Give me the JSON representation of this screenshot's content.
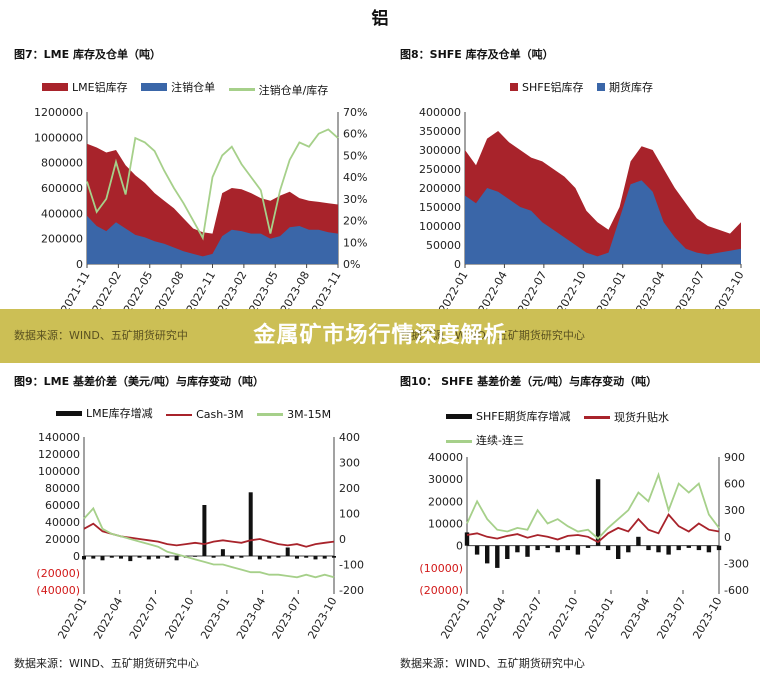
{
  "heading": "铝",
  "source_text": "数据来源：WIND、五矿期货研究中心",
  "banner": {
    "title": "金属矿市场行情深度解析",
    "source_left": "数据来源：WIND、五矿期货研究中",
    "source_right": "数据来源：WIND、五矿期货研究中心"
  },
  "colors": {
    "red": "#a8232b",
    "blue": "#3a66a8",
    "lightgreen": "#a6d08a",
    "black": "#111111",
    "banner": "#c8ba46"
  },
  "chart_data": [
    {
      "id": "fig7",
      "type": "area",
      "title": "图7：LME 库存及仓单（吨）",
      "x_ticks": [
        "2021-11",
        "2022-02",
        "2022-05",
        "2022-08",
        "2022-11",
        "2023-02",
        "2023-05",
        "2023-08",
        "2023-11"
      ],
      "ylim": [
        0,
        1200000
      ],
      "y_ticks": [
        "0",
        "200000",
        "400000",
        "600000",
        "800000",
        "1000000",
        "1200000"
      ],
      "y2lim": [
        0,
        70
      ],
      "y2_ticks": [
        "0%",
        "10%",
        "20%",
        "30%",
        "40%",
        "50%",
        "60%",
        "70%"
      ],
      "series": [
        {
          "name": "LME铝库存",
          "kind": "area",
          "axis": "left",
          "color": "#a8232b",
          "values": [
            950000,
            920000,
            880000,
            900000,
            780000,
            700000,
            640000,
            560000,
            500000,
            440000,
            360000,
            280000,
            250000,
            240000,
            560000,
            600000,
            590000,
            560000,
            520000,
            500000,
            540000,
            570000,
            520000,
            500000,
            490000,
            480000,
            470000
          ]
        },
        {
          "name": "注销仓单",
          "kind": "area",
          "axis": "left",
          "color": "#3a66a8",
          "values": [
            380000,
            300000,
            260000,
            330000,
            280000,
            230000,
            210000,
            180000,
            160000,
            130000,
            100000,
            80000,
            60000,
            80000,
            220000,
            270000,
            260000,
            240000,
            240000,
            200000,
            220000,
            290000,
            300000,
            270000,
            270000,
            250000,
            240000
          ]
        },
        {
          "name": "注销仓单/库存",
          "kind": "line",
          "axis": "right",
          "color": "#a6d08a",
          "values": [
            38,
            24,
            30,
            47,
            32,
            58,
            56,
            52,
            43,
            35,
            28,
            20,
            12,
            40,
            50,
            54,
            46,
            40,
            34,
            14,
            34,
            48,
            56,
            54,
            60,
            62,
            58
          ]
        }
      ]
    },
    {
      "id": "fig8",
      "type": "area",
      "title": "图8：SHFE 库存及仓单（吨）",
      "x_ticks": [
        "2022-01",
        "2022-04",
        "2022-07",
        "2022-10",
        "2023-01",
        "2023-04",
        "2023-07",
        "2023-10"
      ],
      "ylim": [
        0,
        400000
      ],
      "y_ticks": [
        "0",
        "50000",
        "100000",
        "150000",
        "200000",
        "250000",
        "300000",
        "350000",
        "400000"
      ],
      "series": [
        {
          "name": "SHFE铝库存",
          "kind": "area",
          "color": "#a8232b",
          "values": [
            300000,
            260000,
            330000,
            350000,
            320000,
            300000,
            280000,
            270000,
            250000,
            230000,
            200000,
            140000,
            110000,
            90000,
            150000,
            270000,
            310000,
            300000,
            250000,
            200000,
            160000,
            120000,
            100000,
            90000,
            80000,
            110000
          ]
        },
        {
          "name": "期货库存",
          "kind": "area",
          "color": "#3a66a8",
          "values": [
            180000,
            160000,
            200000,
            190000,
            170000,
            150000,
            140000,
            110000,
            90000,
            70000,
            50000,
            30000,
            20000,
            30000,
            120000,
            210000,
            220000,
            190000,
            110000,
            70000,
            40000,
            30000,
            25000,
            30000,
            35000,
            40000
          ]
        }
      ]
    },
    {
      "id": "fig9",
      "type": "line",
      "title": "图9：LME 基差价差（美元/吨）与库存变动（吨）",
      "x_ticks": [
        "2022-01",
        "2022-04",
        "2022-07",
        "2022-10",
        "2023-01",
        "2023-04",
        "2023-07",
        "2023-10"
      ],
      "ylim": [
        -40000,
        140000
      ],
      "y_ticks": [
        "(40000)",
        "(20000)",
        "0",
        "20000",
        "40000",
        "60000",
        "80000",
        "100000",
        "120000",
        "140000"
      ],
      "y2lim": [
        -200,
        400
      ],
      "y2_ticks": [
        "-200",
        "-100",
        "0",
        "100",
        "200",
        "300",
        "400"
      ],
      "series": [
        {
          "name": "LME库存增减",
          "kind": "bar",
          "axis": "left",
          "color": "#111111",
          "values": [
            -4000,
            -3000,
            -5000,
            -2000,
            -3000,
            -6000,
            -2000,
            -4000,
            -3000,
            -2000,
            -5000,
            -2000,
            -1000,
            60000,
            -2000,
            8000,
            -3000,
            -2000,
            75000,
            -4000,
            -3000,
            -2000,
            10000,
            -3000,
            -2000,
            -4000,
            -3000,
            -2000
          ]
        },
        {
          "name": "Cash-3M",
          "kind": "line",
          "axis": "right",
          "color": "#a8232b",
          "values": [
            40,
            60,
            30,
            20,
            10,
            5,
            0,
            -5,
            -10,
            -20,
            -25,
            -20,
            -15,
            -20,
            -10,
            -5,
            -10,
            -15,
            -5,
            0,
            -10,
            -20,
            -25,
            -20,
            -30,
            -20,
            -15,
            -10
          ]
        },
        {
          "name": "3M-15M",
          "kind": "line",
          "axis": "right",
          "color": "#a6d08a",
          "values": [
            80,
            120,
            40,
            20,
            10,
            0,
            -10,
            -20,
            -30,
            -50,
            -60,
            -70,
            -80,
            -90,
            -100,
            -100,
            -110,
            -120,
            -130,
            -130,
            -140,
            -140,
            -145,
            -150,
            -140,
            -150,
            -140,
            -150
          ]
        }
      ]
    },
    {
      "id": "fig10",
      "type": "line",
      "title": "图10： SHFE 基差价差（元/吨）与库存变动（吨）",
      "x_ticks": [
        "2022-01",
        "2022-04",
        "2022-07",
        "2022-10",
        "2023-01",
        "2023-04",
        "2023-07",
        "2023-10"
      ],
      "ylim": [
        -20000,
        40000
      ],
      "y_ticks": [
        "(20000)",
        "(10000)",
        "0",
        "10000",
        "20000",
        "30000",
        "40000"
      ],
      "y2lim": [
        -600,
        900
      ],
      "y2_ticks": [
        "-600",
        "-300",
        "0",
        "300",
        "600",
        "900"
      ],
      "series": [
        {
          "name": "SHFE期货库存增减",
          "kind": "bar",
          "axis": "left",
          "color": "#111111",
          "values": [
            6000,
            -4000,
            -8000,
            -10000,
            -6000,
            -3000,
            -5000,
            -2000,
            -1000,
            -3000,
            -2000,
            -4000,
            -1000,
            30000,
            -2000,
            -6000,
            -3000,
            4000,
            -2000,
            -3000,
            -4000,
            -2000,
            -1000,
            -2000,
            -3000,
            -2000
          ]
        },
        {
          "name": "现货升贴水",
          "kind": "line",
          "axis": "right",
          "color": "#a8232b",
          "values": [
            20,
            40,
            0,
            -20,
            10,
            30,
            -10,
            20,
            0,
            -30,
            10,
            20,
            0,
            -60,
            40,
            100,
            60,
            200,
            80,
            40,
            250,
            120,
            60,
            150,
            80,
            60
          ]
        },
        {
          "name": "连续-连三",
          "kind": "line",
          "axis": "right",
          "color": "#a6d08a",
          "values": [
            150,
            400,
            200,
            80,
            60,
            100,
            80,
            300,
            150,
            200,
            120,
            60,
            80,
            -20,
            100,
            200,
            300,
            500,
            400,
            700,
            300,
            600,
            500,
            600,
            250,
            100
          ]
        }
      ]
    }
  ]
}
